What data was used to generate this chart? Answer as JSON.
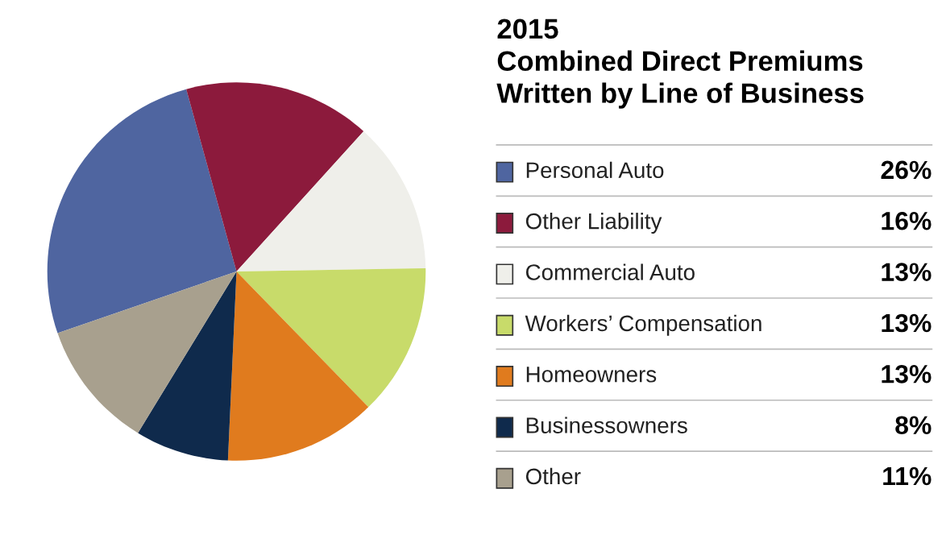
{
  "chart_data": {
    "type": "pie",
    "title": "2015\nCombined Direct Premiums\nWritten by Line of Business",
    "categories": [
      "Personal Auto",
      "Other Liability",
      "Commercial Auto",
      "Workers’ Compensation",
      "Homeowners",
      "Businessowners",
      "Other"
    ],
    "values": [
      26,
      16,
      13,
      13,
      13,
      8,
      11
    ],
    "colors": [
      "#4f65a0",
      "#8c1a3c",
      "#efefea",
      "#c8db6a",
      "#e07b1e",
      "#0f2a4c",
      "#a8a08e"
    ],
    "value_labels": [
      "26%",
      "16%",
      "13%",
      "13%",
      "13%",
      "8%",
      "11%"
    ],
    "legend": "right"
  }
}
